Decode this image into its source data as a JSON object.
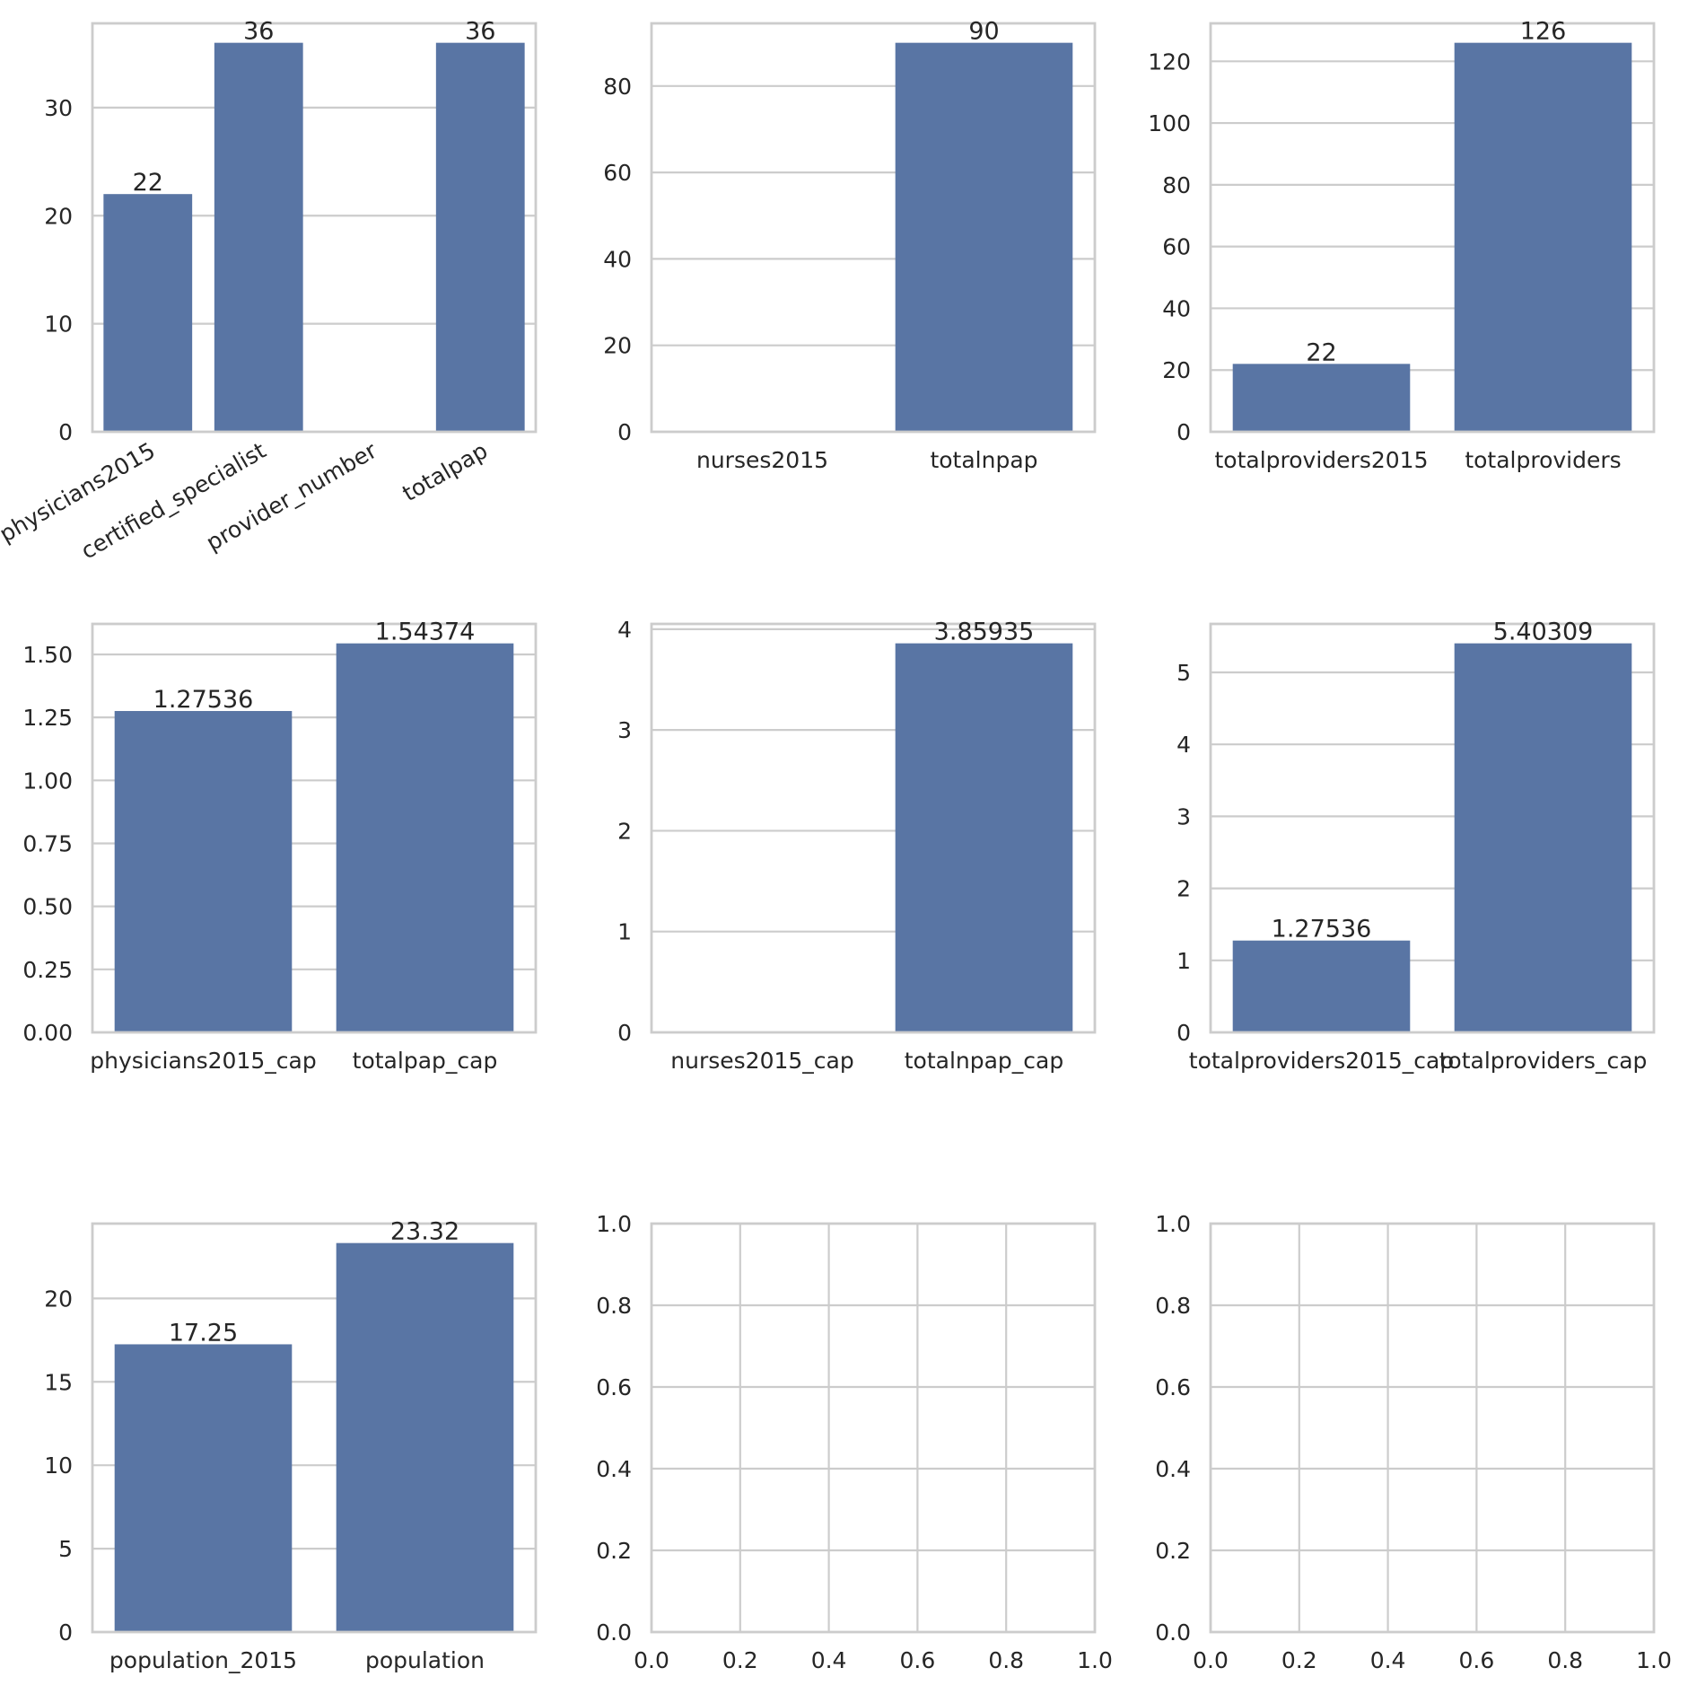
{
  "theme": {
    "bar_color": "#5975a4",
    "grid_color": "#cccccc",
    "text_color": "#262626",
    "background": "#ffffff"
  },
  "chart_data": [
    {
      "type": "bar",
      "categories": [
        "physicians2015",
        "certified_specialist",
        "provider_number",
        "totalpap"
      ],
      "values": [
        22,
        36,
        null,
        36
      ],
      "bar_labels": [
        "22",
        "36",
        "",
        "36"
      ],
      "ylim": [
        0,
        37.8
      ],
      "yticks": [
        0,
        10,
        20,
        30
      ],
      "ytick_labels": [
        "0",
        "10",
        "20",
        "30"
      ],
      "xtick_rotation": 30,
      "grid": "y"
    },
    {
      "type": "bar",
      "categories": [
        "nurses2015",
        "totalnpap"
      ],
      "values": [
        null,
        90
      ],
      "bar_labels": [
        "",
        "90"
      ],
      "ylim": [
        0,
        94.5
      ],
      "yticks": [
        0,
        20,
        40,
        60,
        80
      ],
      "ytick_labels": [
        "0",
        "20",
        "40",
        "60",
        "80"
      ],
      "grid": "y"
    },
    {
      "type": "bar",
      "categories": [
        "totalproviders2015",
        "totalproviders"
      ],
      "values": [
        22,
        126
      ],
      "bar_labels": [
        "22",
        "126"
      ],
      "ylim": [
        0,
        132.3
      ],
      "yticks": [
        0,
        20,
        40,
        60,
        80,
        100,
        120
      ],
      "ytick_labels": [
        "0",
        "20",
        "40",
        "60",
        "80",
        "100",
        "120"
      ],
      "grid": "y"
    },
    {
      "type": "bar",
      "categories": [
        "physicians2015_cap",
        "totalpap_cap"
      ],
      "values": [
        1.27536,
        1.54374
      ],
      "bar_labels": [
        "1.27536",
        "1.54374"
      ],
      "ylim": [
        0,
        1.621
      ],
      "yticks": [
        0,
        0.25,
        0.5,
        0.75,
        1.0,
        1.25,
        1.5
      ],
      "ytick_labels": [
        "0.00",
        "0.25",
        "0.50",
        "0.75",
        "1.00",
        "1.25",
        "1.50"
      ],
      "grid": "y"
    },
    {
      "type": "bar",
      "categories": [
        "nurses2015_cap",
        "totalnpap_cap"
      ],
      "values": [
        null,
        3.85935
      ],
      "bar_labels": [
        "",
        "3.85935"
      ],
      "ylim": [
        0,
        4.052
      ],
      "yticks": [
        0,
        1,
        2,
        3,
        4
      ],
      "ytick_labels": [
        "0",
        "1",
        "2",
        "3",
        "4"
      ],
      "grid": "y"
    },
    {
      "type": "bar",
      "categories": [
        "totalproviders2015_cap",
        "totalproviders_cap"
      ],
      "values": [
        1.27536,
        5.40309
      ],
      "bar_labels": [
        "1.27536",
        "5.40309"
      ],
      "ylim": [
        0,
        5.673
      ],
      "yticks": [
        0,
        1,
        2,
        3,
        4,
        5
      ],
      "ytick_labels": [
        "0",
        "1",
        "2",
        "3",
        "4",
        "5"
      ],
      "grid": "y"
    },
    {
      "type": "bar",
      "categories": [
        "population_2015",
        "population"
      ],
      "values": [
        17.25,
        23.32
      ],
      "bar_labels": [
        "17.25",
        "23.32"
      ],
      "ylim": [
        0,
        24.486
      ],
      "yticks": [
        0,
        5,
        10,
        15,
        20
      ],
      "ytick_labels": [
        "0",
        "5",
        "10",
        "15",
        "20"
      ],
      "grid": "y"
    },
    {
      "type": "empty",
      "xlim": [
        0,
        1
      ],
      "ylim": [
        0,
        1
      ],
      "xticks": [
        0,
        0.2,
        0.4,
        0.6,
        0.8,
        1.0
      ],
      "xtick_labels": [
        "0.0",
        "0.2",
        "0.4",
        "0.6",
        "0.8",
        "1.0"
      ],
      "yticks": [
        0,
        0.2,
        0.4,
        0.6,
        0.8,
        1.0
      ],
      "ytick_labels": [
        "0.0",
        "0.2",
        "0.4",
        "0.6",
        "0.8",
        "1.0"
      ],
      "grid": "both"
    },
    {
      "type": "empty",
      "xlim": [
        0,
        1
      ],
      "ylim": [
        0,
        1
      ],
      "xticks": [
        0,
        0.2,
        0.4,
        0.6,
        0.8,
        1.0
      ],
      "xtick_labels": [
        "0.0",
        "0.2",
        "0.4",
        "0.6",
        "0.8",
        "1.0"
      ],
      "yticks": [
        0,
        0.2,
        0.4,
        0.6,
        0.8,
        1.0
      ],
      "ytick_labels": [
        "0.0",
        "0.2",
        "0.4",
        "0.6",
        "0.8",
        "1.0"
      ],
      "grid": "both"
    }
  ]
}
